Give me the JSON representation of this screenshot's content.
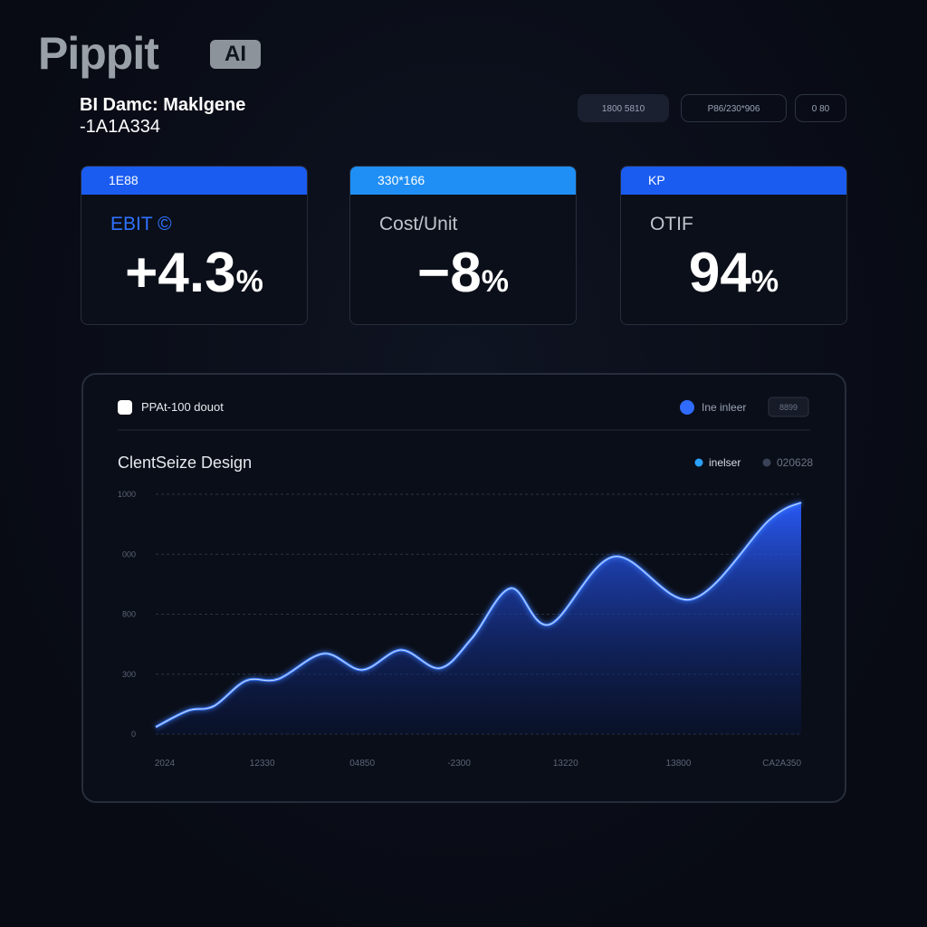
{
  "logo": {
    "text": "Pippit",
    "badge": "AI"
  },
  "header": {
    "title": "BI Damc: Maklgene",
    "subtitle": "-1A1A334"
  },
  "controls": [
    "1800 5810",
    "P86/230*906",
    "0 80"
  ],
  "kpis": [
    {
      "tag": "1E88",
      "label": "EBIT ©",
      "value": "+4.3",
      "unit": "%"
    },
    {
      "tag": "330*166",
      "label": "Cost/Unit",
      "value": "−8",
      "unit": "%"
    },
    {
      "tag": "KP",
      "label": "OTIF",
      "value": "94",
      "unit": "%"
    }
  ],
  "panel": {
    "name": "PPAt-100 douot",
    "toggle": "Ine inleer",
    "button": "8899"
  },
  "chart_data": {
    "type": "area",
    "title": "ClentSeize Design",
    "legend": [
      {
        "name": "inelser",
        "color": "#2aa0ff"
      },
      {
        "name": "020628",
        "color": "#3a4256"
      }
    ],
    "x": [
      0,
      5,
      9,
      14,
      19,
      26,
      32,
      38,
      44,
      49,
      55,
      61,
      71,
      83,
      95,
      100
    ],
    "series": [
      {
        "name": "inelser",
        "color": "#3d7dff",
        "values": [
          30,
          98,
          117,
          223,
          230,
          336,
          268,
          351,
          275,
          400,
          608,
          457,
          740,
          562,
          891,
          966
        ]
      }
    ],
    "xlim": [
      0,
      100
    ],
    "xticks": [
      {
        "value": 1.4,
        "label": "2024"
      },
      {
        "value": 16.5,
        "label": "12330"
      },
      {
        "value": 32,
        "label": "04850"
      },
      {
        "value": 47,
        "label": "-2300"
      },
      {
        "value": 63.5,
        "label": "13220"
      },
      {
        "value": 81,
        "label": "13800"
      },
      {
        "value": 97,
        "label": "CA2A350"
      }
    ],
    "ylim": [
      0,
      1000
    ],
    "yticks": [
      0,
      {
        "value": 250,
        "label": "300"
      },
      {
        "value": 500,
        "label": "800"
      },
      {
        "value": 750,
        "label": "000"
      },
      1000
    ],
    "grid": true
  }
}
